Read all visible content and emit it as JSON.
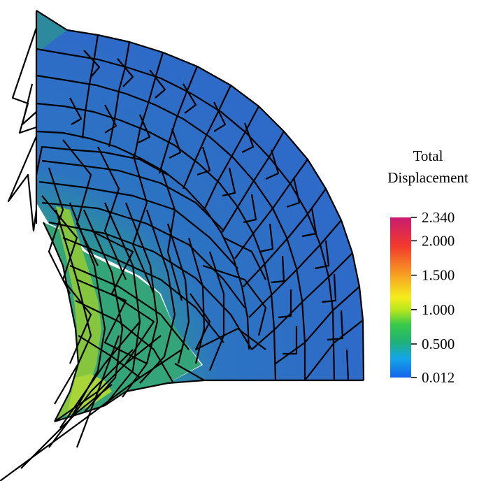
{
  "legend": {
    "title_line1": "Total",
    "title_line2": "Displacement",
    "ticks": [
      {
        "label": "2.340",
        "value": 2.34
      },
      {
        "label": "2.000",
        "value": 2.0
      },
      {
        "label": "1.500",
        "value": 1.5
      },
      {
        "label": "1.000",
        "value": 1.0
      },
      {
        "label": "0.500",
        "value": 0.5
      },
      {
        "label": "0.012",
        "value": 0.012
      }
    ],
    "range": [
      0.012,
      2.34
    ],
    "colormap": [
      "#1565ea",
      "#14a6e8",
      "#1fb07a",
      "#38c94a",
      "#b4e61e",
      "#f5ed1c",
      "#f7a122",
      "#f23a2c",
      "#c81a70"
    ]
  },
  "field_colors": {
    "outer_region": "#2e6cc8",
    "mid_region": "#2e86a8",
    "inner_region": "#2fa67c",
    "high_region": "#8cc63c"
  }
}
